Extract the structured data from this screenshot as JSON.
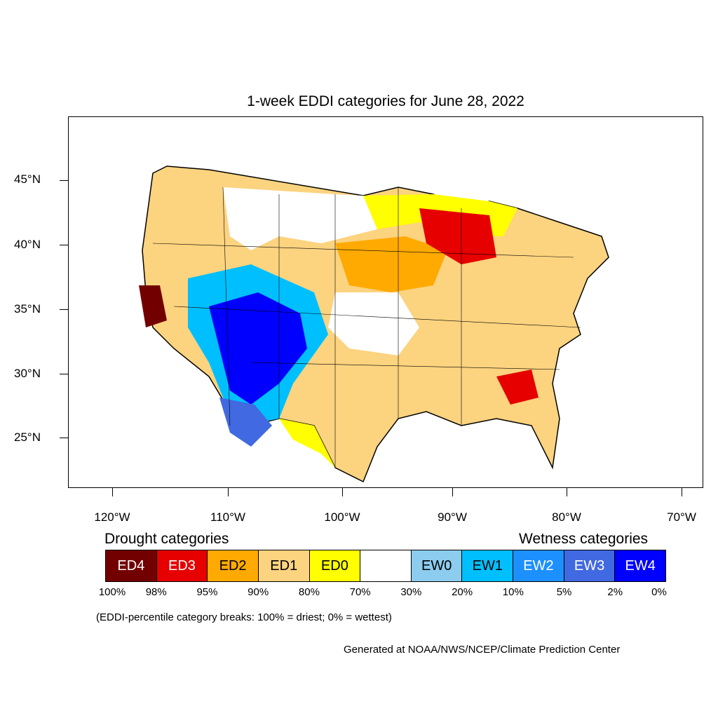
{
  "title": "1-week EDDI categories for June 28, 2022",
  "lat_labels": [
    "45°N",
    "40°N",
    "35°N",
    "30°N",
    "25°N"
  ],
  "lon_labels": [
    "120°W",
    "110°W",
    "100°W",
    "90°W",
    "80°W",
    "70°W"
  ],
  "legend": {
    "drought_heading": "Drought categories",
    "wetness_heading": "Wetness categories",
    "categories": [
      {
        "label": "ED4",
        "color": "#730000"
      },
      {
        "label": "ED3",
        "color": "#e60000"
      },
      {
        "label": "ED2",
        "color": "#ffaa00"
      },
      {
        "label": "ED1",
        "color": "#fcd37f"
      },
      {
        "label": "ED0",
        "color": "#ffff00"
      },
      {
        "label": "",
        "color": "#ffffff"
      },
      {
        "label": "EW0",
        "color": "#8ccdef"
      },
      {
        "label": "EW1",
        "color": "#00bfff"
      },
      {
        "label": "EW2",
        "color": "#1d90ff"
      },
      {
        "label": "EW3",
        "color": "#4169e1"
      },
      {
        "label": "EW4",
        "color": "#0000ff"
      }
    ],
    "percentiles": [
      "100%",
      "98%",
      "95%",
      "90%",
      "80%",
      "70%",
      "30%",
      "20%",
      "10%",
      "5%",
      "2%",
      "0%"
    ]
  },
  "note": "(EDDI-percentile category breaks: 100% = driest; 0% = wettest)",
  "credit": "Generated at NOAA/NWS/NCEP/Climate Prediction Center"
}
